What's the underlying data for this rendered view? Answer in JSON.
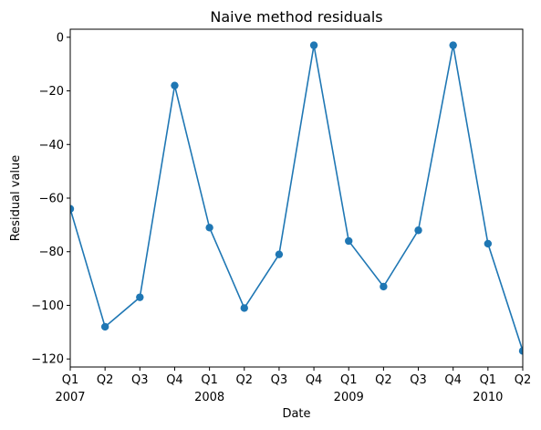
{
  "chart_data": {
    "type": "line",
    "title": "Naive method residuals",
    "xlabel": "Date",
    "ylabel": "Residual value",
    "x": [
      "2007-Q1",
      "2007-Q2",
      "2007-Q3",
      "2007-Q4",
      "2008-Q1",
      "2008-Q2",
      "2008-Q3",
      "2008-Q4",
      "2009-Q1",
      "2009-Q2",
      "2009-Q3",
      "2009-Q4",
      "2010-Q1",
      "2010-Q2"
    ],
    "x_tick_labels": [
      {
        "quarter": "Q1",
        "year": "2007"
      },
      {
        "quarter": "Q2",
        "year": ""
      },
      {
        "quarter": "Q3",
        "year": ""
      },
      {
        "quarter": "Q4",
        "year": ""
      },
      {
        "quarter": "Q1",
        "year": "2008"
      },
      {
        "quarter": "Q2",
        "year": ""
      },
      {
        "quarter": "Q3",
        "year": ""
      },
      {
        "quarter": "Q4",
        "year": ""
      },
      {
        "quarter": "Q1",
        "year": "2009"
      },
      {
        "quarter": "Q2",
        "year": ""
      },
      {
        "quarter": "Q3",
        "year": ""
      },
      {
        "quarter": "Q4",
        "year": ""
      },
      {
        "quarter": "Q1",
        "year": "2010"
      },
      {
        "quarter": "Q2",
        "year": ""
      }
    ],
    "series": [
      {
        "values": [
          -64,
          -108,
          -97,
          -18,
          -71,
          -101,
          -81,
          -3,
          -76,
          -93,
          -72,
          -3,
          -77,
          -117
        ],
        "color": "#1f77b4",
        "marker": "circle"
      }
    ],
    "yticks": [
      0,
      -20,
      -40,
      -60,
      -80,
      -100,
      -120
    ],
    "ytick_labels": [
      "0",
      "−20",
      "−40",
      "−60",
      "−80",
      "−100",
      "−120"
    ],
    "ylim": [
      -123,
      3
    ],
    "grid": false
  }
}
